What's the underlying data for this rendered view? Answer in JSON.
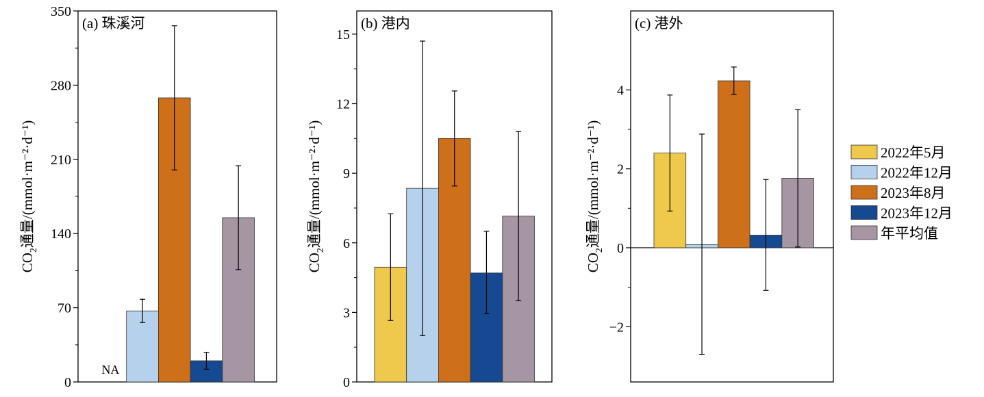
{
  "chart_data": [
    {
      "type": "bar",
      "title": "(a) 珠溪河",
      "ylabel_main": "CO",
      "ylabel_sub": "2",
      "ylabel_rest": "通量/(mmol·m⁻²·d⁻¹)",
      "ylim": [
        0,
        350
      ],
      "yticks": [
        "0",
        "70",
        "140",
        "210",
        "280",
        "350"
      ],
      "series": [
        {
          "name": "2022年5月",
          "value": null,
          "err_low": null,
          "err_high": null
        },
        {
          "name": "2022年12月",
          "value": 67,
          "err_low": 56,
          "err_high": 78
        },
        {
          "name": "2023年8月",
          "value": 268,
          "err_low": 200,
          "err_high": 336
        },
        {
          "name": "2023年12月",
          "value": 20,
          "err_low": 12,
          "err_high": 28
        },
        {
          "name": "年平均值",
          "value": 155,
          "err_low": 106,
          "err_high": 204
        }
      ],
      "annotation": "NA"
    },
    {
      "type": "bar",
      "title": "(b) 港内",
      "ylabel_main": "CO",
      "ylabel_sub": "2",
      "ylabel_rest": "通量/(mmol·m⁻²·d⁻¹)",
      "ylim": [
        0,
        16
      ],
      "yticks": [
        "0",
        "3",
        "6",
        "9",
        "12",
        "15"
      ],
      "series": [
        {
          "name": "2022年5月",
          "value": 4.95,
          "err_low": 2.65,
          "err_high": 7.25
        },
        {
          "name": "2022年12月",
          "value": 8.35,
          "err_low": 2.0,
          "err_high": 14.7
        },
        {
          "name": "2023年8月",
          "value": 10.5,
          "err_low": 8.45,
          "err_high": 12.55
        },
        {
          "name": "2023年12月",
          "value": 4.7,
          "err_low": 2.95,
          "err_high": 6.5
        },
        {
          "name": "年平均值",
          "value": 7.15,
          "err_low": 3.5,
          "err_high": 10.8
        }
      ]
    },
    {
      "type": "bar",
      "title": "(c) 港外",
      "ylabel_main": "CO",
      "ylabel_sub": "2",
      "ylabel_rest": "通量/(mmol·m⁻²·d⁻¹)",
      "ylim": [
        -3.4,
        6.0
      ],
      "yticks": [
        "−2",
        "0",
        "2",
        "4"
      ],
      "ytick_values": [
        -2,
        0,
        2,
        4
      ],
      "series": [
        {
          "name": "2022年5月",
          "value": 2.4,
          "err_low": 0.93,
          "err_high": 3.87
        },
        {
          "name": "2022年12月",
          "value": 0.08,
          "err_low": -2.7,
          "err_high": 2.88
        },
        {
          "name": "2023年8月",
          "value": 4.23,
          "err_low": 3.88,
          "err_high": 4.58
        },
        {
          "name": "2023年12月",
          "value": 0.32,
          "err_low": -1.08,
          "err_high": 1.73
        },
        {
          "name": "年平均值",
          "value": 1.76,
          "err_low": 0.02,
          "err_high": 3.5
        }
      ]
    }
  ],
  "legend": [
    {
      "label": "2022年5月",
      "color": "#EFC94C"
    },
    {
      "label": "2022年12月",
      "color": "#B5D1EC"
    },
    {
      "label": "2023年8月",
      "color": "#CD7019"
    },
    {
      "label": "2023年12月",
      "color": "#154A92"
    },
    {
      "label": "年平均值",
      "color": "#A695A3"
    }
  ],
  "colors": [
    "#EFC94C",
    "#B5D1EC",
    "#CD7019",
    "#154A92",
    "#A695A3"
  ]
}
